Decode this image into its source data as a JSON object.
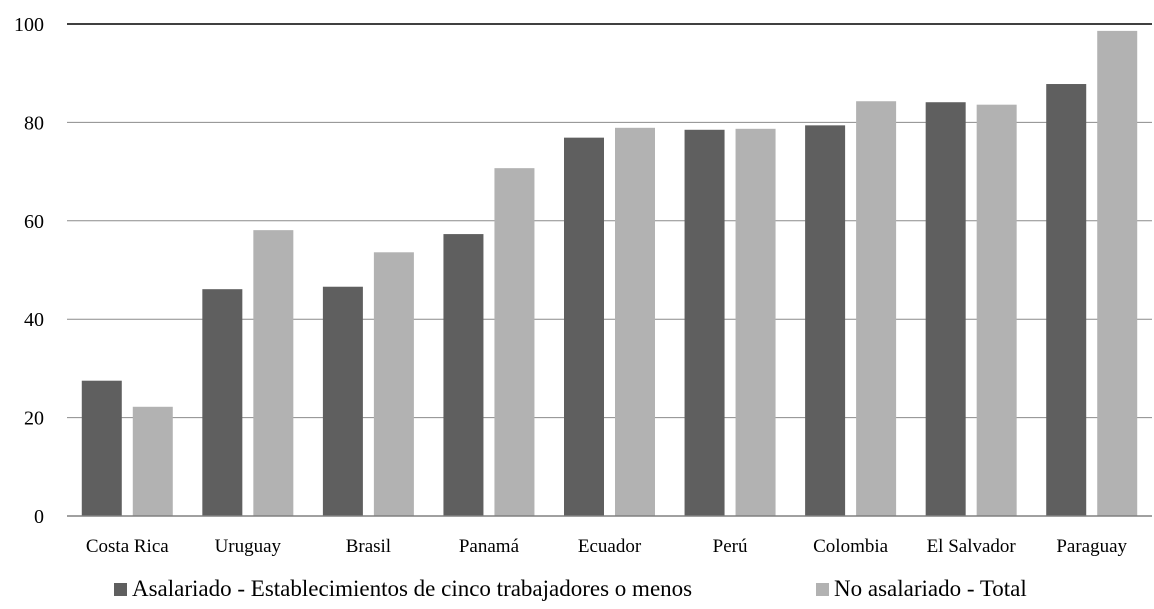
{
  "chart_data": {
    "type": "bar",
    "title": "",
    "xlabel": "",
    "ylabel": "",
    "ylim": [
      0,
      100
    ],
    "yticks": [
      0,
      20,
      40,
      60,
      80,
      100
    ],
    "grid": true,
    "legend_position": "bottom",
    "categories": [
      "Costa Rica",
      "Uruguay",
      "Brasil",
      "Panamá",
      "Ecuador",
      "Perú",
      "Colombia",
      "El Salvador",
      "Paraguay"
    ],
    "series": [
      {
        "name": "Asalariado - Establecimientos de cinco trabajadores o menos",
        "color": "#5f5f5f",
        "values": [
          27.5,
          46.1,
          46.6,
          57.3,
          76.9,
          78.5,
          79.4,
          84.1,
          87.8
        ]
      },
      {
        "name": "No asalariado - Total",
        "color": "#b2b2b2",
        "values": [
          22.2,
          58.1,
          53.6,
          70.7,
          78.9,
          78.7,
          84.3,
          83.6,
          98.6
        ]
      }
    ]
  }
}
